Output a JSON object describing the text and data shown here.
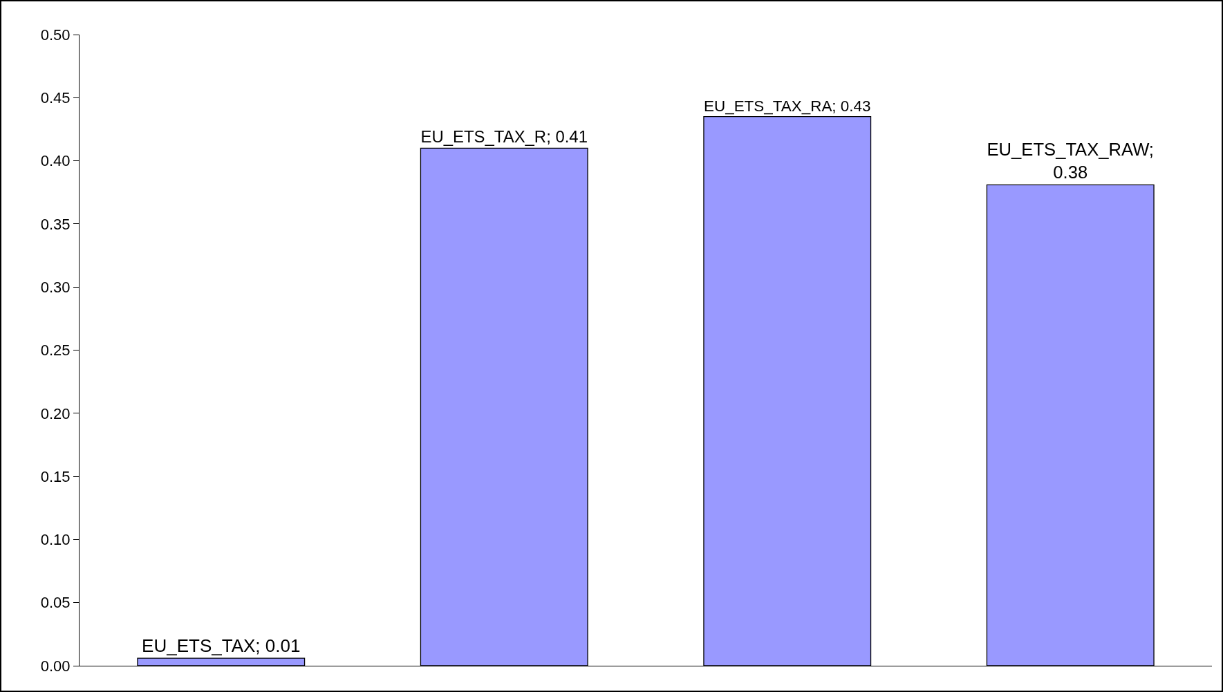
{
  "chart_data": {
    "type": "bar",
    "categories": [
      null,
      null,
      null,
      null
    ],
    "values": [
      0.006,
      0.41,
      0.435,
      0.381
    ],
    "value_labels": [
      "EU_ETS_TAX; 0.01",
      "EU_ETS_TAX_R; 0.41",
      "EU_ETS_TAX_RA; 0.43",
      "EU_ETS_TAX_RAW;\n0.38"
    ],
    "color": "#9999ff",
    "ylim": [
      0,
      0.5
    ],
    "yticks": [
      {
        "value": 0,
        "label": "0.00"
      },
      {
        "value": 0.05,
        "label": "0.05"
      },
      {
        "value": 0.1,
        "label": "0.10"
      },
      {
        "value": 0.15,
        "label": "0.15"
      },
      {
        "value": 0.2,
        "label": "0.20"
      },
      {
        "value": 0.25,
        "label": "0.25"
      },
      {
        "value": 0.3,
        "label": "0.30"
      },
      {
        "value": 0.35,
        "label": "0.35"
      },
      {
        "value": 0.4,
        "label": "0.40"
      },
      {
        "value": 0.45,
        "label": "0.45"
      },
      {
        "value": 0.5,
        "label": "0.50"
      }
    ],
    "grid": false,
    "legend": false,
    "tick_labels": "y"
  }
}
